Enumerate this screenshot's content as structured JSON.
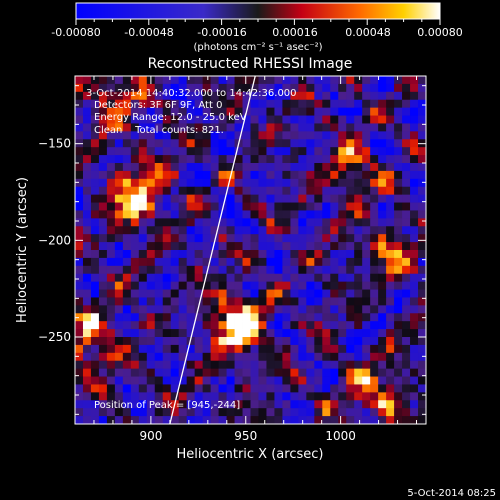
{
  "colorbar": {
    "ticks": [
      "-0.00080",
      "-0.00048",
      "-0.00016",
      "0.00016",
      "0.00048",
      "0.00080"
    ],
    "units_label": "(photons cm⁻² s⁻¹ asec⁻²)",
    "range": [
      -0.0008,
      0.0008
    ]
  },
  "chart_data": {
    "type": "heatmap",
    "title": "Reconstructed RHESSI Image",
    "xlabel": "Heliocentric X (arcsec)",
    "ylabel": "Heliocentric Y (arcsec)",
    "xlim": [
      860,
      1045
    ],
    "ylim": [
      -295,
      -115
    ],
    "x_ticks": [
      900,
      950,
      1000
    ],
    "y_ticks": [
      -150,
      -200,
      -250
    ],
    "limb_line": [
      [
        910,
        -295
      ],
      [
        955,
        -115
      ]
    ],
    "annotations": [
      "3-Oct-2014 14:40:32.000 to 14:42:36.000",
      "Detectors: 3F 6F 9F, Att 0",
      "Energy Range: 12.0 - 25.0 keV",
      "Clean    Total counts: 821."
    ],
    "peak_label": "Position of Peak = [945,-244]",
    "peak": [
      945,
      -244
    ],
    "sources": [
      {
        "x": 945,
        "y": -244,
        "amp": 1.0
      },
      {
        "x": 893,
        "y": -178,
        "amp": 0.85
      },
      {
        "x": 868,
        "y": -252,
        "amp": 0.7
      },
      {
        "x": 1020,
        "y": -280,
        "amp": 0.6
      },
      {
        "x": 1025,
        "y": -205,
        "amp": 0.55
      },
      {
        "x": 1005,
        "y": -162,
        "amp": 0.5
      },
      {
        "x": 880,
        "y": -125,
        "amp": 0.5
      }
    ]
  },
  "footer": {
    "timestamp": "5-Oct-2014 08:25"
  }
}
